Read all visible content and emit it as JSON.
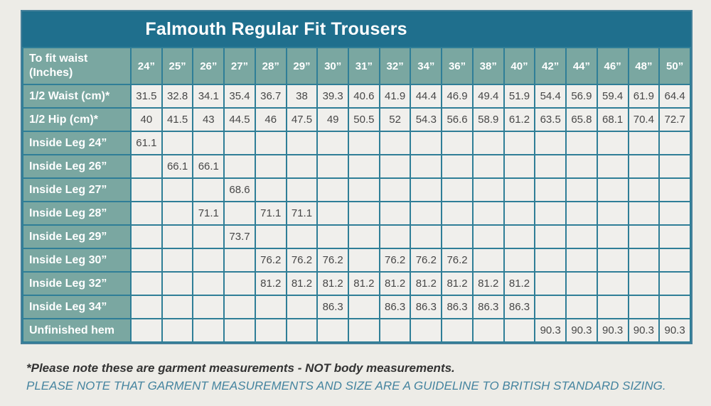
{
  "title": "Falmouth Regular Fit Trousers",
  "notes": {
    "garment": "*Please note these are garment measurements - NOT body measurements.",
    "guideline": "PLEASE NOTE THAT GARMENT MEASUREMENTS AND SIZE ARE A GUIDELINE TO BRITISH STANDARD SIZING."
  },
  "colors": {
    "title_bar": "#1f6f8d",
    "header_cell": "#7aa7a1",
    "grid_border": "#2f7e97",
    "cell_background": "#f0efec",
    "page_background": "#edece7",
    "note_accent": "#45849f",
    "header_text": "#ffffff",
    "data_text": "#474747"
  },
  "chart_data": {
    "type": "table",
    "title": "Falmouth Regular Fit Trousers",
    "corner_header": "To fit waist (Inches)",
    "size_columns": [
      "24”",
      "25”",
      "26”",
      "27”",
      "28”",
      "29”",
      "30”",
      "31”",
      "32”",
      "34”",
      "36”",
      "38”",
      "40”",
      "42”",
      "44”",
      "46”",
      "48”",
      "50”"
    ],
    "rows": [
      {
        "label": "1/2 Waist (cm)*",
        "values": [
          "31.5",
          "32.8",
          "34.1",
          "35.4",
          "36.7",
          "38",
          "39.3",
          "40.6",
          "41.9",
          "44.4",
          "46.9",
          "49.4",
          "51.9",
          "54.4",
          "56.9",
          "59.4",
          "61.9",
          "64.4"
        ]
      },
      {
        "label": "1/2 Hip (cm)*",
        "values": [
          "40",
          "41.5",
          "43",
          "44.5",
          "46",
          "47.5",
          "49",
          "50.5",
          "52",
          "54.3",
          "56.6",
          "58.9",
          "61.2",
          "63.5",
          "65.8",
          "68.1",
          "70.4",
          "72.7"
        ]
      },
      {
        "label": "Inside Leg 24”",
        "values": [
          "61.1",
          "",
          "",
          "",
          "",
          "",
          "",
          "",
          "",
          "",
          "",
          "",
          "",
          "",
          "",
          "",
          "",
          ""
        ]
      },
      {
        "label": "Inside Leg 26”",
        "values": [
          "",
          "66.1",
          "66.1",
          "",
          "",
          "",
          "",
          "",
          "",
          "",
          "",
          "",
          "",
          "",
          "",
          "",
          "",
          ""
        ]
      },
      {
        "label": "Inside Leg 27”",
        "values": [
          "",
          "",
          "",
          "68.6",
          "",
          "",
          "",
          "",
          "",
          "",
          "",
          "",
          "",
          "",
          "",
          "",
          "",
          ""
        ]
      },
      {
        "label": "Inside Leg 28”",
        "values": [
          "",
          "",
          "71.1",
          "",
          "71.1",
          "71.1",
          "",
          "",
          "",
          "",
          "",
          "",
          "",
          "",
          "",
          "",
          "",
          ""
        ]
      },
      {
        "label": "Inside Leg 29”",
        "values": [
          "",
          "",
          "",
          "73.7",
          "",
          "",
          "",
          "",
          "",
          "",
          "",
          "",
          "",
          "",
          "",
          "",
          "",
          ""
        ]
      },
      {
        "label": "Inside Leg 30”",
        "values": [
          "",
          "",
          "",
          "",
          "76.2",
          "76.2",
          "76.2",
          "",
          "76.2",
          "76.2",
          "76.2",
          "",
          "",
          "",
          "",
          "",
          "",
          ""
        ]
      },
      {
        "label": "Inside Leg 32”",
        "values": [
          "",
          "",
          "",
          "",
          "81.2",
          "81.2",
          "81.2",
          "81.2",
          "81.2",
          "81.2",
          "81.2",
          "81.2",
          "81.2",
          "",
          "",
          "",
          "",
          ""
        ]
      },
      {
        "label": "Inside Leg 34”",
        "values": [
          "",
          "",
          "",
          "",
          "",
          "",
          "86.3",
          "",
          "86.3",
          "86.3",
          "86.3",
          "86.3",
          "86.3",
          "",
          "",
          "",
          "",
          ""
        ]
      },
      {
        "label": "Unfinished hem",
        "values": [
          "",
          "",
          "",
          "",
          "",
          "",
          "",
          "",
          "",
          "",
          "",
          "",
          "",
          "90.3",
          "90.3",
          "90.3",
          "90.3",
          "90.3"
        ]
      }
    ]
  }
}
